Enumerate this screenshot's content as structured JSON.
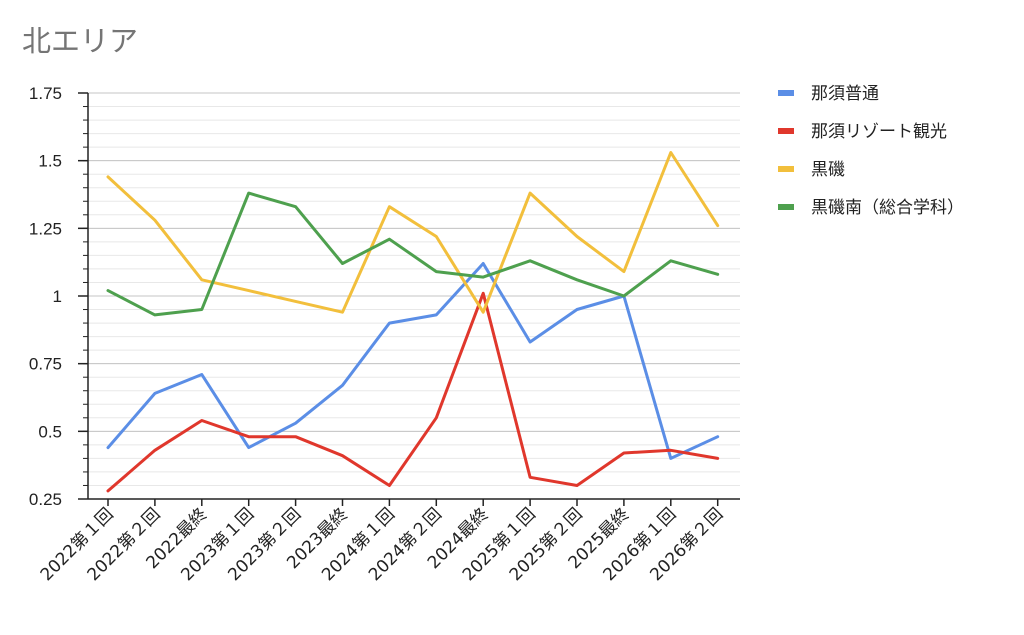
{
  "chart_data": {
    "type": "line",
    "title": "北エリア",
    "categories": [
      "2022第１回",
      "2022第２回",
      "2022最終",
      "2023第１回",
      "2023第２回",
      "2023最終",
      "2024第１回",
      "2024第２回",
      "2024最終",
      "2025第１回",
      "2025第２回",
      "2025最終",
      "2026第１回",
      "2026第２回"
    ],
    "ylim": [
      0.25,
      1.75
    ],
    "yticks": [
      "0.25",
      "0.5",
      "0.75",
      "1",
      "1.25",
      "1.5",
      "1.75"
    ],
    "grid": true,
    "legend_position": "right",
    "series": [
      {
        "name": "那須普通",
        "color": "#5b8ee6",
        "values": [
          0.44,
          0.64,
          0.71,
          0.44,
          0.53,
          0.67,
          0.9,
          0.93,
          1.12,
          0.83,
          0.95,
          1.0,
          0.4,
          0.48
        ]
      },
      {
        "name": "那須リゾート観光",
        "color": "#e0372c",
        "values": [
          0.28,
          0.43,
          0.54,
          0.48,
          0.48,
          0.41,
          0.3,
          0.55,
          1.01,
          0.33,
          0.3,
          0.42,
          0.43,
          0.4
        ]
      },
      {
        "name": "黒磯",
        "color": "#f2bf3c",
        "values": [
          1.44,
          1.28,
          1.06,
          1.02,
          0.98,
          0.94,
          1.33,
          1.22,
          0.94,
          1.38,
          1.22,
          1.09,
          1.53,
          1.26
        ]
      },
      {
        "name": "黒磯南（総合学科）",
        "color": "#4ea04e",
        "values": [
          1.02,
          0.93,
          0.95,
          1.38,
          1.33,
          1.12,
          1.21,
          1.09,
          1.07,
          1.13,
          1.06,
          1.0,
          1.13,
          1.08
        ]
      }
    ]
  }
}
